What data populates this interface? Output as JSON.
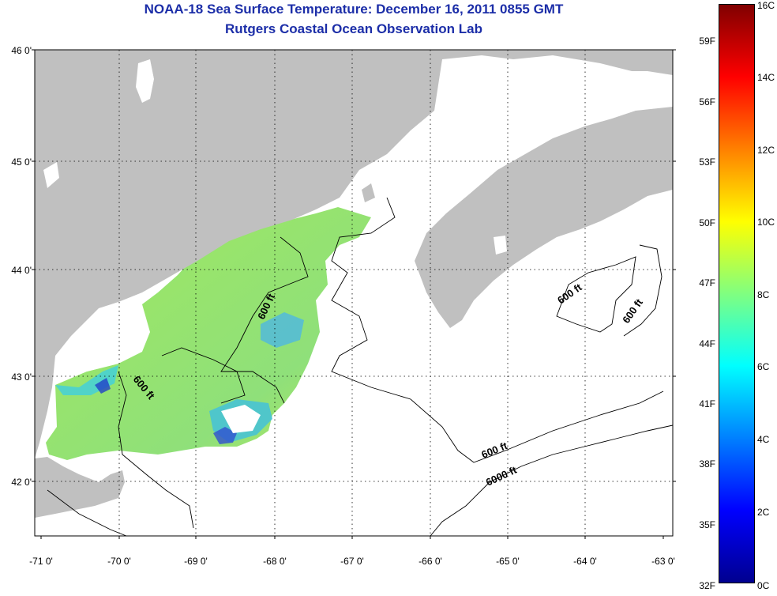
{
  "title": {
    "line1": "NOAA-18 Sea Surface Temperature:  December 16, 2011 0855 GMT",
    "line2": "Rutgers Coastal Ocean Observation Lab"
  },
  "map": {
    "lat_labels": [
      "46 0'",
      "45 0'",
      "44 0'",
      "43 0'",
      "42 0'"
    ],
    "lon_labels": [
      "-71 0'",
      "-70 0'",
      "-69 0'",
      "-68 0'",
      "-67 0'",
      "-66 0'",
      "-65 0'",
      "-64 0'",
      "-63 0'"
    ],
    "contour_labels": [
      "600 ft",
      "600 ft",
      "600 ft",
      "600 ft",
      "600 ft",
      "6000 ft"
    ],
    "colors": {
      "land": "#c0c0c0",
      "no_data": "#ffffff",
      "sst_mid": "#8fe07a",
      "sst_cool": "#3fd2c8"
    }
  },
  "colorbar": {
    "fahrenheit_labels": [
      "59F",
      "56F",
      "53F",
      "50F",
      "47F",
      "44F",
      "41F",
      "38F",
      "35F",
      "32F"
    ],
    "celsius_labels": [
      "16C",
      "14C",
      "12C",
      "10C",
      "8C",
      "6C",
      "4C",
      "2C",
      "0C"
    ],
    "range_c": [
      0,
      16
    ],
    "colors": [
      "#00008f",
      "#0000ff",
      "#0080ff",
      "#00ffff",
      "#80ff80",
      "#ffff00",
      "#ff8000",
      "#ff0000",
      "#800000"
    ]
  }
}
